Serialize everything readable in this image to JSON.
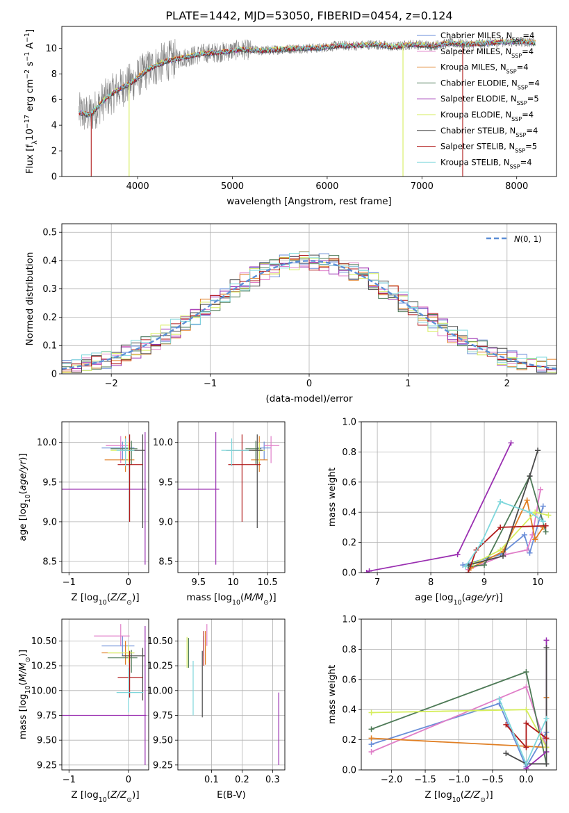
{
  "title": "PLATE=1442, MJD=53050, FIBERID=0454, z=0.124",
  "colors": {
    "Chabrier MILES": "#6a8ed8",
    "Salpeter MILES": "#e07ec8",
    "Kroupa MILES": "#e07f24",
    "Chabrier ELODIE": "#4e7a57",
    "Salpeter ELODIE": "#9a2fb1",
    "Kroupa ELODIE": "#d6ee5d",
    "Chabrier STELIB": "#4a4a4a",
    "Salpeter STELIB": "#b01a1a",
    "Kroupa STELIB": "#7ed7dc",
    "observed": "#808080",
    "gaussian": "#5b8ed6"
  },
  "legend_spectrum": [
    {
      "name": "Chabrier MILES",
      "label": "Chabrier MILES, N",
      "sub": "SSP",
      "n": "=4"
    },
    {
      "name": "Salpeter MILES",
      "label": "Salpeter MILES, N",
      "sub": "SSP",
      "n": "=4"
    },
    {
      "name": "Kroupa MILES",
      "label": "Kroupa MILES, N",
      "sub": "SSP",
      "n": "=4"
    },
    {
      "name": "Chabrier ELODIE",
      "label": "Chabrier ELODIE, N",
      "sub": "SSP",
      "n": "=4"
    },
    {
      "name": "Salpeter ELODIE",
      "label": "Salpeter ELODIE, N",
      "sub": "SSP",
      "n": "=5"
    },
    {
      "name": "Kroupa ELODIE",
      "label": "Kroupa ELODIE, N",
      "sub": "SSP",
      "n": "=4"
    },
    {
      "name": "Chabrier STELIB",
      "label": "Chabrier STELIB, N",
      "sub": "SSP",
      "n": "=4"
    },
    {
      "name": "Salpeter STELIB",
      "label": "Salpeter STELIB, N",
      "sub": "SSP",
      "n": "=5"
    },
    {
      "name": "Kroupa STELIB",
      "label": "Kroupa STELIB, N",
      "sub": "SSP",
      "n": "=4"
    }
  ],
  "chart_data": [
    {
      "id": "spectrum",
      "type": "line",
      "xlabel": "wavelength [Angstrom, rest frame]",
      "ylabel": "Flux [f_λ 10^-17 erg cm^-2 s^-1 A^-1]",
      "xlim": [
        3200,
        8420
      ],
      "ylim": [
        0,
        11.7
      ],
      "xticks": [
        4000,
        5000,
        6000,
        7000,
        8000
      ],
      "yticks": [
        0,
        2,
        4,
        6,
        8,
        10
      ],
      "grid": false,
      "legend": "top-right",
      "continuum": {
        "x": [
          3380,
          3500,
          3650,
          3800,
          3950,
          4100,
          4300,
          4500,
          4700,
          4900,
          5100,
          5300,
          5500,
          5700,
          5900,
          6100,
          6300,
          6500,
          6700,
          6900,
          7100,
          7300,
          7500,
          7700,
          7900,
          8100,
          8200
        ],
        "y": [
          5.0,
          4.8,
          6.0,
          6.8,
          7.4,
          8.3,
          9.0,
          9.3,
          9.6,
          9.7,
          9.9,
          9.8,
          9.9,
          10.0,
          10.0,
          10.2,
          10.2,
          10.3,
          10.1,
          10.3,
          10.2,
          10.4,
          10.3,
          10.4,
          10.5,
          10.5,
          10.4
        ]
      },
      "drops": [
        {
          "series": "Salpeter STELIB",
          "x": 3510
        },
        {
          "series": "Kroupa ELODIE",
          "x": 3910
        },
        {
          "series": "Kroupa ELODIE",
          "x": 6800
        },
        {
          "series": "Salpeter STELIB",
          "x": 7430
        }
      ]
    },
    {
      "id": "residual-histogram",
      "type": "line",
      "xlabel": "(data-model)/error",
      "ylabel": "Normed distribution",
      "xlim": [
        -2.5,
        2.5
      ],
      "ylim": [
        0,
        0.53
      ],
      "xticks": [
        -2,
        -1,
        0,
        1,
        2
      ],
      "yticks": [
        0,
        0.1,
        0.2,
        0.3,
        0.4,
        0.5
      ],
      "grid": true,
      "legend": "top-right",
      "gaussian_label": "N(0, 1)",
      "bin_width": 0.1
    },
    {
      "id": "age-vs-metallicity",
      "type": "scatter",
      "xlabel": "Z [log10(Z/Z⊙)]",
      "ylabel": "age [log10(age/yr)]",
      "xlim": [
        -1.12,
        0.34
      ],
      "ylim": [
        8.36,
        10.26
      ],
      "xticks": [
        -1,
        0
      ],
      "yticks": [
        8.5,
        9.0,
        9.5,
        10.0
      ],
      "grid": true,
      "points": [
        {
          "series": "Chabrier MILES",
          "x": -0.1,
          "xerr": [
            0.35,
            0.2
          ],
          "y": 9.93,
          "yerr": [
            0.15,
            0.08
          ]
        },
        {
          "series": "Salpeter MILES",
          "x": -0.13,
          "xerr": [
            0.25,
            0.15
          ],
          "y": 9.96,
          "yerr": [
            0.22,
            0.12
          ]
        },
        {
          "series": "Kroupa MILES",
          "x": -0.05,
          "xerr": [
            0.35,
            0.15
          ],
          "y": 9.78,
          "yerr": [
            0.15,
            0.3
          ]
        },
        {
          "series": "Chabrier ELODIE",
          "x": 0.05,
          "xerr": [
            0.35,
            0.1
          ],
          "y": 9.92,
          "yerr": [
            0.2,
            0.1
          ]
        },
        {
          "series": "Salpeter ELODIE",
          "x": 0.28,
          "xerr": [
            1.4,
            0.02
          ],
          "y": 9.41,
          "yerr": [
            0.95,
            0.72
          ]
        },
        {
          "series": "Kroupa ELODIE",
          "x": 0.0,
          "xerr": [
            0.3,
            0.1
          ],
          "y": 9.9,
          "yerr": [
            0.15,
            0.1
          ]
        },
        {
          "series": "Chabrier STELIB",
          "x": 0.24,
          "xerr": [
            0.35,
            0.04
          ],
          "y": 9.9,
          "yerr": [
            0.98,
            0.2
          ]
        },
        {
          "series": "Salpeter STELIB",
          "x": 0.02,
          "xerr": [
            0.2,
            0.22
          ],
          "y": 9.72,
          "yerr": [
            0.72,
            0.38
          ]
        },
        {
          "series": "Kroupa STELIB",
          "x": -0.05,
          "xerr": [
            0.15,
            0.15
          ],
          "y": 9.9,
          "yerr": [
            0.2,
            0.15
          ]
        }
      ]
    },
    {
      "id": "age-vs-mass",
      "type": "scatter",
      "xlabel": "mass [log10(M/M⊙)]",
      "ylabel": "",
      "xlim": [
        9.2,
        10.75
      ],
      "ylim": [
        8.36,
        10.26
      ],
      "xticks": [
        9.5,
        10.0,
        10.5
      ],
      "yticks": [
        8.5,
        9.0,
        9.5,
        10.0
      ],
      "grid": true,
      "points": [
        {
          "series": "Chabrier MILES",
          "x": 10.45,
          "xerr": [
            0.1,
            0.1
          ],
          "y": 9.93,
          "yerr": [
            0.15,
            0.08
          ]
        },
        {
          "series": "Salpeter MILES",
          "x": 10.55,
          "xerr": [
            0.1,
            0.12
          ],
          "y": 9.96,
          "yerr": [
            0.22,
            0.12
          ]
        },
        {
          "series": "Kroupa MILES",
          "x": 10.38,
          "xerr": [
            0.12,
            0.12
          ],
          "y": 9.78,
          "yerr": [
            0.15,
            0.3
          ]
        },
        {
          "series": "Chabrier ELODIE",
          "x": 10.33,
          "xerr": [
            0.15,
            0.08
          ],
          "y": 9.92,
          "yerr": [
            0.2,
            0.1
          ]
        },
        {
          "series": "Salpeter ELODIE",
          "x": 9.75,
          "xerr": [
            0.55,
            0.05
          ],
          "y": 9.41,
          "yerr": [
            0.95,
            0.72
          ]
        },
        {
          "series": "Kroupa ELODIE",
          "x": 10.38,
          "xerr": [
            0.1,
            0.08
          ],
          "y": 9.9,
          "yerr": [
            0.15,
            0.1
          ]
        },
        {
          "series": "Chabrier STELIB",
          "x": 10.35,
          "xerr": [
            0.45,
            0.08
          ],
          "y": 9.9,
          "yerr": [
            0.98,
            0.2
          ]
        },
        {
          "series": "Salpeter STELIB",
          "x": 10.13,
          "xerr": [
            0.2,
            0.27
          ],
          "y": 9.72,
          "yerr": [
            0.72,
            0.38
          ]
        },
        {
          "series": "Kroupa STELIB",
          "x": 9.98,
          "xerr": [
            0.15,
            0.25
          ],
          "y": 9.9,
          "yerr": [
            0.2,
            0.15
          ]
        }
      ]
    },
    {
      "id": "mass-weight-vs-age",
      "type": "line",
      "xlabel": "age [log10(age/yr)]",
      "ylabel": "mass weight",
      "xlim": [
        6.7,
        10.35
      ],
      "ylim": [
        0,
        1.0
      ],
      "xticks": [
        7,
        8,
        9,
        10
      ],
      "yticks": [
        0.0,
        0.2,
        0.4,
        0.6,
        0.8,
        1.0
      ],
      "grid": true,
      "series": [
        {
          "name": "Chabrier MILES",
          "x": [
            8.6,
            9.3,
            9.75,
            9.85,
            10.1
          ],
          "y": [
            0.05,
            0.12,
            0.25,
            0.13,
            0.44
          ]
        },
        {
          "name": "Salpeter MILES",
          "x": [
            8.7,
            9.4,
            9.8,
            9.9,
            10.05
          ],
          "y": [
            0.02,
            0.12,
            0.15,
            0.25,
            0.55
          ]
        },
        {
          "name": "Kroupa MILES",
          "x": [
            8.75,
            9.35,
            9.8,
            9.95,
            10.1
          ],
          "y": [
            0.03,
            0.14,
            0.48,
            0.22,
            0.3
          ]
        },
        {
          "name": "Chabrier ELODIE",
          "x": [
            8.7,
            9.0,
            9.85,
            10.15
          ],
          "y": [
            0.04,
            0.05,
            0.64,
            0.27
          ]
        },
        {
          "name": "Salpeter ELODIE",
          "x": [
            6.8,
            6.85,
            8.5,
            9.5
          ],
          "y": [
            0.0,
            0.01,
            0.12,
            0.86
          ]
        },
        {
          "name": "Kroupa ELODIE",
          "x": [
            8.8,
            9.3,
            9.95,
            10.2
          ],
          "y": [
            0.06,
            0.15,
            0.4,
            0.38
          ]
        },
        {
          "name": "Chabrier STELIB",
          "x": [
            8.7,
            9.35,
            9.85,
            10.0
          ],
          "y": [
            0.05,
            0.11,
            0.64,
            0.81
          ]
        },
        {
          "name": "Salpeter STELIB",
          "x": [
            8.7,
            8.85,
            9.3,
            10.15
          ],
          "y": [
            0.0,
            0.15,
            0.3,
            0.31
          ]
        },
        {
          "name": "Kroupa STELIB",
          "x": [
            8.65,
            8.95,
            9.3,
            9.85,
            10.1
          ],
          "y": [
            0.04,
            0.2,
            0.47,
            0.4,
            0.34
          ]
        }
      ]
    },
    {
      "id": "mass-vs-metallicity",
      "type": "scatter",
      "xlabel": "Z [log10(Z/Z⊙)]",
      "ylabel": "mass [log10(M/M⊙)]",
      "xlim": [
        -1.12,
        0.34
      ],
      "ylim": [
        9.2,
        10.72
      ],
      "xticks": [
        -1,
        0
      ],
      "yticks": [
        9.25,
        9.5,
        9.75,
        10.0,
        10.25,
        10.5
      ],
      "grid": true,
      "points": [
        {
          "series": "Chabrier MILES",
          "x": -0.1,
          "xerr": [
            0.35,
            0.2
          ],
          "y": 10.45,
          "yerr": [
            0.1,
            0.1
          ]
        },
        {
          "series": "Salpeter MILES",
          "x": -0.13,
          "xerr": [
            0.45,
            0.15
          ],
          "y": 10.55,
          "yerr": [
            0.1,
            0.12
          ]
        },
        {
          "series": "Kroupa MILES",
          "x": -0.05,
          "xerr": [
            0.4,
            0.15
          ],
          "y": 10.38,
          "yerr": [
            0.12,
            0.12
          ]
        },
        {
          "series": "Chabrier ELODIE",
          "x": 0.05,
          "xerr": [
            0.4,
            0.1
          ],
          "y": 10.33,
          "yerr": [
            0.15,
            0.08
          ]
        },
        {
          "series": "Salpeter ELODIE",
          "x": 0.28,
          "xerr": [
            1.4,
            0.02
          ],
          "y": 9.75,
          "yerr": [
            0.5,
            0.9
          ]
        },
        {
          "series": "Kroupa ELODIE",
          "x": 0.0,
          "xerr": [
            0.35,
            0.1
          ],
          "y": 10.38,
          "yerr": [
            0.1,
            0.08
          ]
        },
        {
          "series": "Chabrier STELIB",
          "x": 0.24,
          "xerr": [
            0.35,
            0.04
          ],
          "y": 10.35,
          "yerr": [
            0.45,
            0.08
          ]
        },
        {
          "series": "Salpeter STELIB",
          "x": 0.02,
          "xerr": [
            0.2,
            0.22
          ],
          "y": 10.13,
          "yerr": [
            0.2,
            0.27
          ]
        },
        {
          "series": "Kroupa STELIB",
          "x": 0.0,
          "xerr": [
            0.2,
            0.25
          ],
          "y": 9.98,
          "yerr": [
            0.2,
            0.25
          ]
        }
      ]
    },
    {
      "id": "mass-vs-reddening",
      "type": "scatter",
      "xlabel": "E(B-V)",
      "ylabel": "",
      "xlim": [
        -0.01,
        0.34
      ],
      "ylim": [
        9.2,
        10.72
      ],
      "xticks": [
        0.1,
        0.2,
        0.3
      ],
      "yticks": [
        9.25,
        9.5,
        9.75,
        10.0,
        10.25,
        10.5
      ],
      "grid": true,
      "points": [
        {
          "series": "Chabrier MILES",
          "x": 0.075,
          "y": 10.45,
          "yerr": [
            0.1,
            0.1
          ]
        },
        {
          "series": "Salpeter MILES",
          "x": 0.085,
          "y": 10.55,
          "yerr": [
            0.1,
            0.12
          ]
        },
        {
          "series": "Kroupa MILES",
          "x": 0.08,
          "y": 10.38,
          "yerr": [
            0.12,
            0.22
          ]
        },
        {
          "series": "Chabrier ELODIE",
          "x": 0.025,
          "y": 10.33,
          "yerr": [
            0.1,
            0.2
          ]
        },
        {
          "series": "Salpeter ELODIE",
          "x": 0.32,
          "y": 9.5,
          "yerr": [
            0.25,
            0.48
          ]
        },
        {
          "series": "Kroupa ELODIE",
          "x": 0.02,
          "y": 10.38,
          "yerr": [
            0.15,
            0.16
          ]
        },
        {
          "series": "Chabrier STELIB",
          "x": 0.07,
          "y": 10.35,
          "yerr": [
            0.62,
            0.05
          ]
        },
        {
          "series": "Salpeter STELIB",
          "x": 0.075,
          "y": 10.4,
          "yerr": [
            0.15,
            0.2
          ]
        },
        {
          "series": "Kroupa STELIB",
          "x": 0.04,
          "y": 10.0,
          "yerr": [
            0.25,
            0.3
          ]
        }
      ]
    },
    {
      "id": "mass-weight-vs-metallicity",
      "type": "line",
      "xlabel": "Z [log10(Z/Z⊙)]",
      "ylabel": "mass weight",
      "xlim": [
        -2.45,
        0.45
      ],
      "ylim": [
        0,
        1.0
      ],
      "xticks": [
        -2.0,
        -1.5,
        -1.0,
        -0.5,
        0.0
      ],
      "yticks": [
        0.0,
        0.2,
        0.4,
        0.6,
        0.8,
        1.0
      ],
      "grid": true,
      "series": [
        {
          "name": "Chabrier MILES",
          "x": [
            -2.3,
            -0.4,
            0.0,
            0.3
          ],
          "y": [
            0.17,
            0.44,
            0.02,
            0.25
          ]
        },
        {
          "name": "Salpeter MILES",
          "x": [
            -2.3,
            0.0,
            0.3
          ],
          "y": [
            0.12,
            0.55,
            0.15
          ]
        },
        {
          "name": "Kroupa MILES",
          "x": [
            -2.3,
            0.3,
            0.3
          ],
          "y": [
            0.21,
            0.15,
            0.48
          ]
        },
        {
          "name": "Chabrier ELODIE",
          "x": [
            -2.3,
            0.0,
            0.3
          ],
          "y": [
            0.27,
            0.65,
            0.04
          ]
        },
        {
          "name": "Salpeter ELODIE",
          "x": [
            0.0,
            0.3,
            0.3
          ],
          "y": [
            0.01,
            0.12,
            0.86
          ]
        },
        {
          "name": "Kroupa ELODIE",
          "x": [
            -2.3,
            0.0,
            0.3
          ],
          "y": [
            0.38,
            0.4,
            0.15
          ]
        },
        {
          "name": "Chabrier STELIB",
          "x": [
            -0.3,
            0.0,
            0.3,
            0.3
          ],
          "y": [
            0.11,
            0.04,
            0.04,
            0.81
          ]
        },
        {
          "name": "Salpeter STELIB",
          "x": [
            -0.3,
            0.0,
            0.0,
            0.3
          ],
          "y": [
            0.3,
            0.15,
            0.31,
            0.21
          ]
        },
        {
          "name": "Kroupa STELIB",
          "x": [
            -0.4,
            0.0,
            0.3
          ],
          "y": [
            0.47,
            0.04,
            0.34
          ]
        }
      ]
    }
  ]
}
